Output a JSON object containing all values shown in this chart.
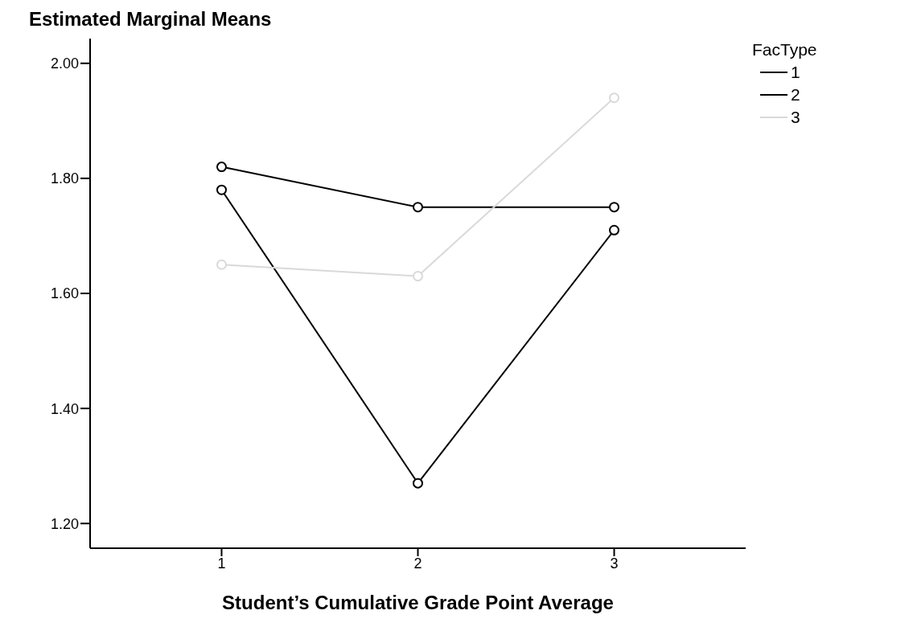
{
  "chart_data": {
    "type": "line",
    "title": "Estimated Marginal Means",
    "xlabel": "Student’s Cumulative Grade Point Average",
    "legend_title": "FacType",
    "x": [
      1,
      2,
      3
    ],
    "series": [
      {
        "name": "1",
        "color": "#000000",
        "values": [
          1.82,
          1.75,
          1.75
        ]
      },
      {
        "name": "2",
        "color": "#000000",
        "values": [
          1.78,
          1.27,
          1.71
        ]
      },
      {
        "name": "3",
        "color": "#d9d9d9",
        "values": [
          1.65,
          1.63,
          1.94
        ]
      }
    ],
    "xlim": [
      0.33,
      3.67
    ],
    "xticks": [
      1,
      2,
      3
    ],
    "ylim": [
      1.157,
      2.043
    ],
    "yticks": [
      {
        "value": 1.2,
        "label": "1.20"
      },
      {
        "value": 1.4,
        "label": "1.40"
      },
      {
        "value": 1.6,
        "label": "1.60"
      },
      {
        "value": 1.8,
        "label": "1.80"
      },
      {
        "value": 2.0,
        "label": "2.00"
      }
    ],
    "grid": false,
    "legend": "top right",
    "marker": "circle",
    "line_style": "solid"
  }
}
